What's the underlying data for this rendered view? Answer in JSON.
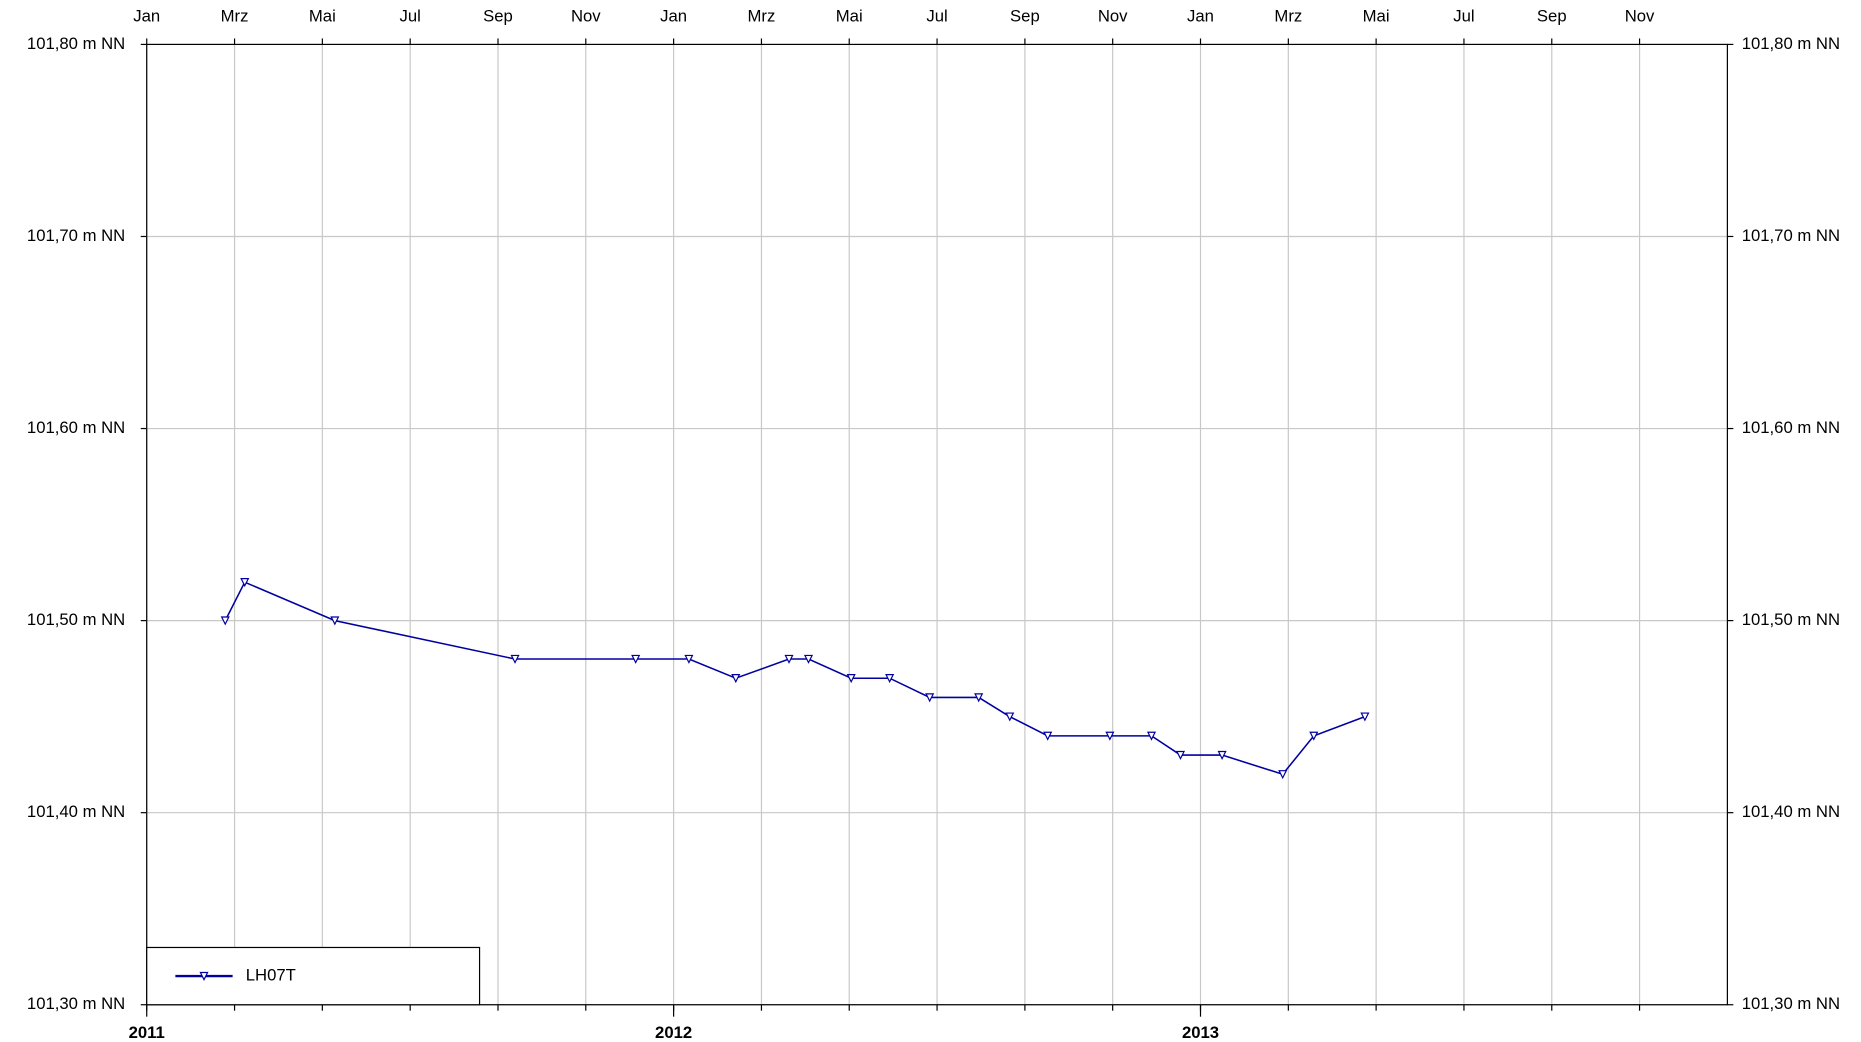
{
  "chart_data": {
    "type": "line",
    "x": [
      2011.149,
      2011.186,
      2011.357,
      2011.699,
      2011.928,
      2012.029,
      2012.118,
      2012.219,
      2012.256,
      2012.337,
      2012.41,
      2012.486,
      2012.579,
      2012.638,
      2012.71,
      2012.828,
      2012.907,
      2012.962,
      2013.041,
      2013.156,
      2013.215,
      2013.312
    ],
    "series": [
      {
        "name": "LH07T",
        "color": "#0000a0",
        "values": [
          101.5,
          101.52,
          101.5,
          101.48,
          101.48,
          101.48,
          101.47,
          101.48,
          101.48,
          101.47,
          101.47,
          101.46,
          101.46,
          101.45,
          101.44,
          101.44,
          101.44,
          101.43,
          101.43,
          101.42,
          101.44,
          101.45
        ]
      }
    ],
    "xlim": [
      2011,
      2014
    ],
    "xticks": [
      2011,
      2012,
      2013
    ],
    "month_ticks": [
      {
        "value": 2011.0,
        "label": "Jan"
      },
      {
        "value": 2011.1667,
        "label": "Mrz"
      },
      {
        "value": 2011.3333,
        "label": "Mai"
      },
      {
        "value": 2011.5,
        "label": "Jul"
      },
      {
        "value": 2011.6667,
        "label": "Sep"
      },
      {
        "value": 2011.8333,
        "label": "Nov"
      },
      {
        "value": 2012.0,
        "label": "Jan"
      },
      {
        "value": 2012.1667,
        "label": "Mrz"
      },
      {
        "value": 2012.3333,
        "label": "Mai"
      },
      {
        "value": 2012.5,
        "label": "Jul"
      },
      {
        "value": 2012.6667,
        "label": "Sep"
      },
      {
        "value": 2012.8333,
        "label": "Nov"
      },
      {
        "value": 2013.0,
        "label": "Jan"
      },
      {
        "value": 2013.1667,
        "label": "Mrz"
      },
      {
        "value": 2013.3333,
        "label": "Mai"
      },
      {
        "value": 2013.5,
        "label": "Jul"
      },
      {
        "value": 2013.6667,
        "label": "Sep"
      },
      {
        "value": 2013.8333,
        "label": "Nov"
      }
    ],
    "ylim": [
      101.3,
      101.8
    ],
    "yticks": [
      {
        "value": 101.3,
        "label": "101,30 m NN"
      },
      {
        "value": 101.4,
        "label": "101,40 m NN"
      },
      {
        "value": 101.5,
        "label": "101,50 m NN"
      },
      {
        "value": 101.6,
        "label": "101,60 m NN"
      },
      {
        "value": 101.7,
        "label": "101,70 m NN"
      },
      {
        "value": 101.8,
        "label": "101,80 m NN"
      }
    ],
    "grid": true,
    "legend": "lower left"
  }
}
